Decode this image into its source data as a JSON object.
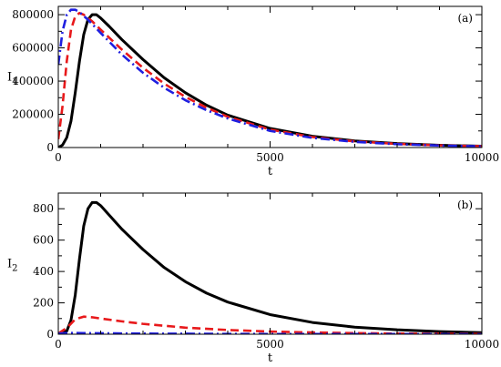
{
  "chart_data": [
    {
      "type": "line",
      "panel_label": "(a)",
      "xlabel": "t",
      "ylabel": "I",
      "ylabel_subscript": "1",
      "xlim": [
        0,
        10000
      ],
      "ylim": [
        0,
        850000
      ],
      "xticks": [
        0,
        5000,
        10000
      ],
      "yticks": [
        0,
        200000,
        400000,
        600000,
        800000
      ],
      "grid": false,
      "series": [
        {
          "color": "#000000",
          "dash": "solid",
          "x": [
            0,
            100,
            200,
            300,
            400,
            500,
            600,
            700,
            800,
            900,
            1000,
            1200,
            1500,
            2000,
            2500,
            3000,
            3500,
            4000,
            5000,
            6000,
            7000,
            8000,
            9000,
            10000
          ],
          "y": [
            0,
            15000,
            60000,
            160000,
            330000,
            520000,
            680000,
            770000,
            800000,
            800000,
            780000,
            730000,
            650000,
            530000,
            420000,
            330000,
            255000,
            195000,
            115000,
            68000,
            40000,
            24000,
            14000,
            8000
          ]
        },
        {
          "color": "#e8191b",
          "dash": "dashed",
          "x": [
            0,
            100,
            200,
            300,
            400,
            500,
            600,
            800,
            1000,
            1500,
            2000,
            2500,
            3000,
            3500,
            4000,
            5000,
            6000,
            7000,
            8000,
            9000,
            10000
          ],
          "y": [
            50000,
            250000,
            520000,
            710000,
            790000,
            810000,
            800000,
            760000,
            710000,
            590000,
            480000,
            385000,
            305000,
            240000,
            185000,
            108000,
            63000,
            37000,
            22000,
            13000,
            8000
          ]
        },
        {
          "color": "#1f1fe0",
          "dash": "dashdot",
          "x": [
            0,
            50,
            100,
            200,
            300,
            400,
            500,
            700,
            1000,
            1500,
            2000,
            2500,
            3000,
            3500,
            4000,
            5000,
            6000,
            7000,
            8000,
            9000,
            10000
          ],
          "y": [
            500000,
            600000,
            700000,
            800000,
            830000,
            830000,
            815000,
            770000,
            690000,
            560000,
            450000,
            360000,
            285000,
            225000,
            175000,
            100000,
            58000,
            34000,
            20000,
            12000,
            7000
          ]
        }
      ]
    },
    {
      "type": "line",
      "panel_label": "(b)",
      "xlabel": "t",
      "ylabel": "I",
      "ylabel_subscript": "2",
      "xlim": [
        0,
        10000
      ],
      "ylim": [
        0,
        900
      ],
      "xticks": [
        0,
        5000,
        10000
      ],
      "yticks": [
        0,
        200,
        400,
        600,
        800
      ],
      "grid": false,
      "series": [
        {
          "color": "#000000",
          "dash": "solid",
          "x": [
            0,
            200,
            300,
            400,
            500,
            600,
            700,
            800,
            900,
            1000,
            1200,
            1500,
            2000,
            2500,
            3000,
            3500,
            4000,
            5000,
            6000,
            7000,
            8000,
            9000,
            10000
          ],
          "y": [
            0,
            20,
            90,
            250,
            480,
            690,
            800,
            840,
            840,
            820,
            760,
            670,
            540,
            425,
            335,
            262,
            205,
            125,
            75,
            45,
            28,
            17,
            10
          ]
        },
        {
          "color": "#e8191b",
          "dash": "dashed",
          "x": [
            0,
            200,
            400,
            600,
            800,
            1000,
            1500,
            2000,
            3000,
            4000,
            5000,
            6000,
            7000,
            8000,
            9000,
            10000
          ],
          "y": [
            5,
            40,
            95,
            112,
            108,
            100,
            82,
            66,
            42,
            27,
            17,
            11,
            7,
            4,
            3,
            2
          ]
        },
        {
          "color": "#1f1fe0",
          "dash": "dashdot",
          "x": [
            0,
            300,
            600,
            1000,
            2000,
            4000,
            6000,
            8000,
            10000
          ],
          "y": [
            5,
            8,
            7,
            6,
            4,
            2,
            1,
            1,
            0
          ]
        }
      ]
    }
  ]
}
